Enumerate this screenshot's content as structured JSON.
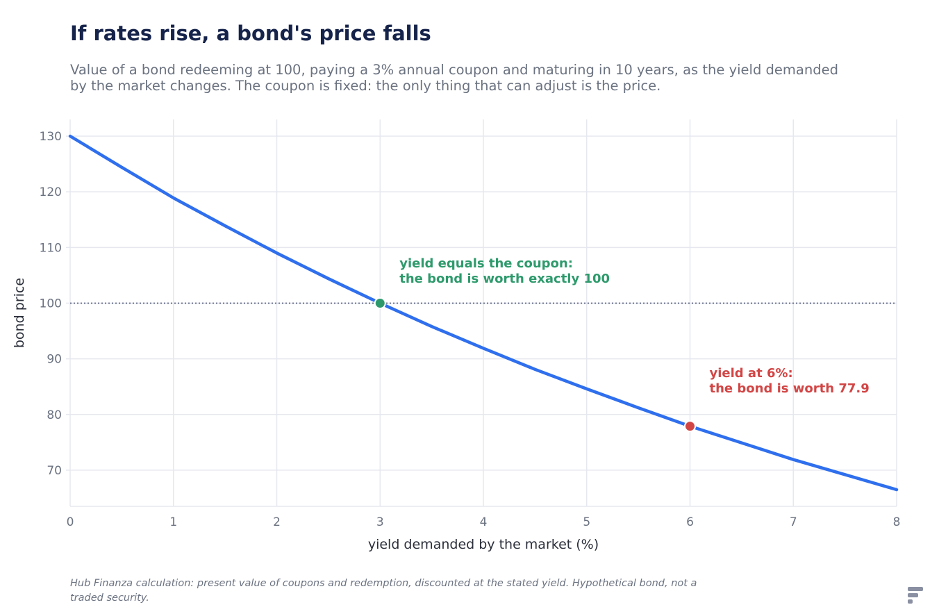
{
  "header": {
    "title": "If rates rise, a bond's price falls",
    "subtitle": "Value of a bond redeeming at 100, paying a 3% annual coupon and maturing in 10 years, as the yield demanded by the market changes. The coupon is fixed: the only thing that can adjust is the price."
  },
  "footnote": "Hub Finanza calculation: present value of coupons and redemption, discounted at the stated yield. Hypothetical bond, not a traded security.",
  "colors": {
    "line": "#2f6fee",
    "par": "#2e9a6c",
    "high": "#d24545",
    "grid": "#e6e8ef",
    "reference": "#5b6380",
    "axis_text": "#6b7280",
    "label_text": "#2b2f3a"
  },
  "brand": {
    "logo_icon": "hub-finanza-logo-icon"
  },
  "chart_data": {
    "type": "line",
    "xlabel": "yield demanded by the market (%)",
    "ylabel": "bond price",
    "xlim": [
      0,
      8
    ],
    "ylim": [
      63.5,
      133
    ],
    "x_ticks": [
      0,
      1,
      2,
      3,
      4,
      5,
      6,
      7,
      8
    ],
    "y_ticks": [
      70,
      80,
      90,
      100,
      110,
      120,
      130
    ],
    "grid": true,
    "legend": "none",
    "series": [
      {
        "x": [
          0,
          0.5,
          1,
          1.5,
          2,
          2.5,
          3,
          3.5,
          4,
          4.5,
          5,
          5.5,
          6,
          6.5,
          7,
          7.5,
          8
        ],
        "values": [
          130,
          124.4,
          118.9,
          113.9,
          109.0,
          104.4,
          100,
          95.8,
          91.9,
          88.1,
          84.6,
          81.2,
          77.9,
          74.9,
          71.9,
          69.2,
          66.5
        ]
      }
    ],
    "reference_line": {
      "y": 100,
      "style": "dotted"
    },
    "annotations": [
      {
        "x": 3,
        "y": 100,
        "color_key": "par",
        "line1": "yield equals the coupon:",
        "line2": "the bond is worth exactly 100"
      },
      {
        "x": 6,
        "y": 77.9,
        "color_key": "high",
        "line1": "yield at 6%:",
        "line2": "the bond is worth 77.9"
      }
    ]
  }
}
